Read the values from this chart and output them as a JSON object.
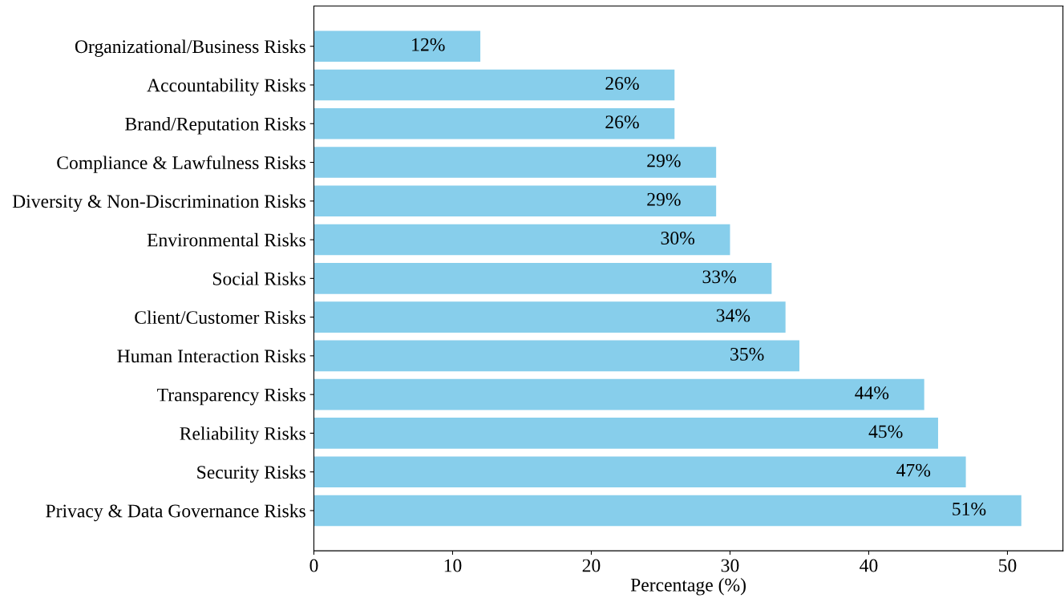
{
  "chart_data": {
    "type": "bar",
    "orientation": "horizontal",
    "xlabel": "Percentage (%)",
    "categories": [
      "Organizational/Business Risks",
      "Accountability Risks",
      "Brand/Reputation Risks",
      "Compliance & Lawfulness Risks",
      "Diversity & Non-Discrimination Risks",
      "Environmental Risks",
      "Social Risks",
      "Client/Customer Risks",
      "Human Interaction Risks",
      "Transparency Risks",
      "Reliability Risks",
      "Security Risks",
      "Privacy & Data Governance Risks"
    ],
    "values": [
      12,
      26,
      26,
      29,
      29,
      30,
      33,
      34,
      35,
      44,
      45,
      47,
      51
    ],
    "value_labels": [
      "12%",
      "26%",
      "26%",
      "29%",
      "29%",
      "30%",
      "33%",
      "34%",
      "35%",
      "44%",
      "45%",
      "47%",
      "51%"
    ],
    "color": "#87ceeb",
    "xlim": [
      0,
      54
    ],
    "xticks": [
      0,
      10,
      20,
      30,
      40,
      50
    ],
    "grid": false,
    "legend": false
  }
}
